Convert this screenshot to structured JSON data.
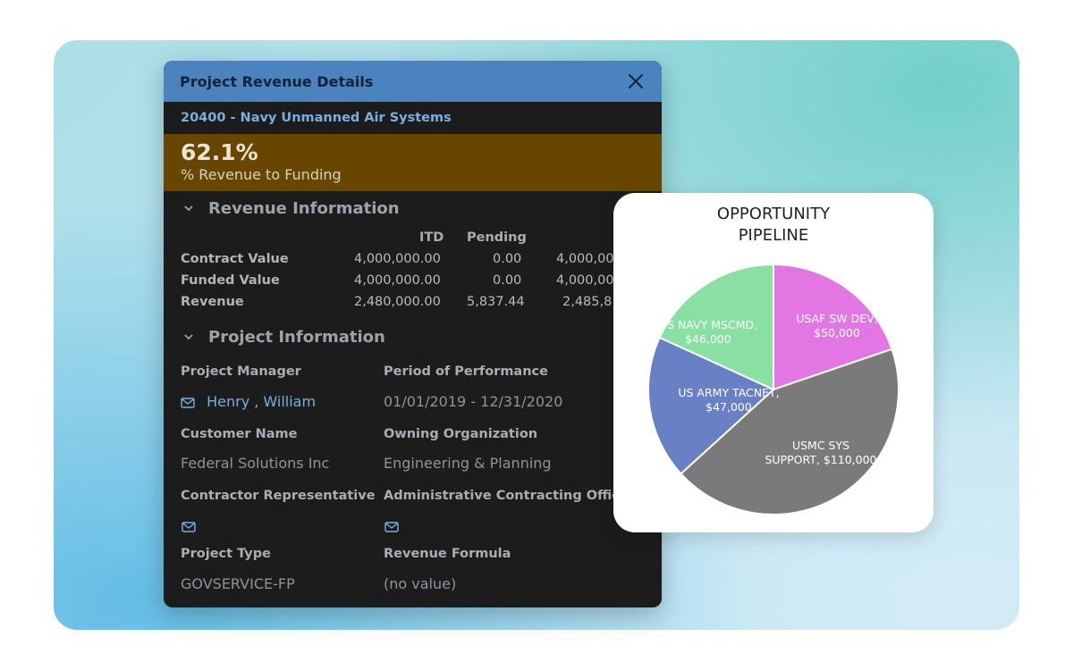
{
  "panel": {
    "title": "Project Revenue Details",
    "project": "20400 - Navy Unmanned Air Systems",
    "kpi": {
      "value": "62.1%",
      "label": "% Revenue to Funding"
    }
  },
  "revenue_section": {
    "heading": "Revenue Information",
    "columns": [
      "ITD",
      "Pending",
      ""
    ],
    "rows": [
      {
        "label": "Contract Value",
        "itd": "4,000,000.00",
        "pending": "0.00",
        "total": "4,000,00"
      },
      {
        "label": "Funded Value",
        "itd": "4,000,000.00",
        "pending": "0.00",
        "total": "4,000,00"
      },
      {
        "label": "Revenue",
        "itd": "2,480,000.00",
        "pending": "5,837.44",
        "total": "2,485,8"
      }
    ]
  },
  "project_section": {
    "heading": "Project Information",
    "project_manager_label": "Project Manager",
    "project_manager_value": "Henry , William",
    "period_label": "Period of Performance",
    "period_value": "01/01/2019 - 12/31/2020",
    "customer_label": "Customer Name",
    "customer_value": "Federal Solutions Inc",
    "owning_org_label": "Owning Organization",
    "owning_org_value": "Engineering & Planning",
    "contractor_rep_label": "Contractor Representative",
    "admin_officer_label": "Administrative Contracting Offic",
    "project_type_label": "Project Type",
    "project_type_value": "GOVSERVICE-FP",
    "revenue_formula_label": "Revenue Formula",
    "revenue_formula_value": "(no value)"
  },
  "chart_data": {
    "type": "pie",
    "title": "OPPORTUNITY\nPIPELINE",
    "slices": [
      {
        "label": "USAF SW DEV,",
        "value_text": "$50,000",
        "value": 50000,
        "color": "#e276e2"
      },
      {
        "label": "USMC SYS",
        "value_text": "SUPPORT, $110,000",
        "value": 110000,
        "color": "#7a7a7a"
      },
      {
        "label": "US ARMY TACNET,",
        "value_text": "$47,000",
        "value": 47000,
        "color": "#6981c4"
      },
      {
        "label": "US NAVY MSCMD,",
        "value_text": "$46,000",
        "value": 46000,
        "color": "#8ae0a2"
      }
    ]
  }
}
